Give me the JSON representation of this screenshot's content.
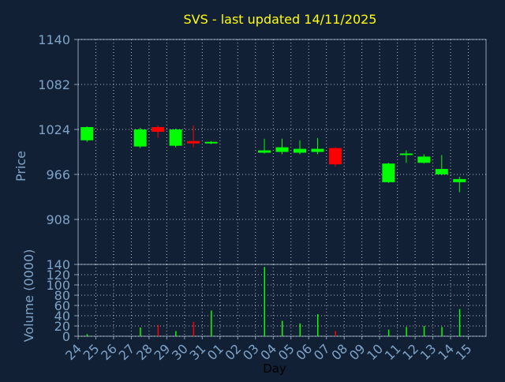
{
  "title": "SVS - last updated 14/11/2025",
  "colors": {
    "background": "#112035",
    "text": "#7fa3c7",
    "title": "#ffff00",
    "grid": "#ffffff",
    "up": "#00ff00",
    "down": "#ff0000"
  },
  "chart_data": [
    {
      "type": "candlestick",
      "ylabel": "Price",
      "ylim": [
        850,
        1140
      ],
      "yticks": [
        908,
        966,
        1024,
        1082,
        1140
      ],
      "grid": true,
      "x_tick_labels": [
        "24",
        "25",
        "26",
        "27",
        "28",
        "29",
        "30",
        "31",
        "01",
        "02",
        "03",
        "04",
        "05",
        "06",
        "07",
        "08",
        "09",
        "10",
        "11",
        "12",
        "13",
        "14",
        "15"
      ],
      "candles": [
        {
          "day": "24",
          "open": 1010,
          "high": 1028,
          "low": 1008,
          "close": 1027
        },
        {
          "day": "27",
          "open": 1002,
          "high": 1026,
          "low": 1000,
          "close": 1024
        },
        {
          "day": "28",
          "open": 1027,
          "high": 1029,
          "low": 1013,
          "close": 1021
        },
        {
          "day": "29",
          "open": 1003,
          "high": 1025,
          "low": 1001,
          "close": 1024
        },
        {
          "day": "30",
          "open": 1009,
          "high": 1029,
          "low": 1001,
          "close": 1006
        },
        {
          "day": "31",
          "open": 1007,
          "high": 1009,
          "low": 1005,
          "close": 1008
        },
        {
          "day": "03",
          "open": 994,
          "high": 1012,
          "low": 993,
          "close": 997
        },
        {
          "day": "04",
          "open": 995,
          "high": 1012,
          "low": 992,
          "close": 1001
        },
        {
          "day": "05",
          "open": 994,
          "high": 1010,
          "low": 992,
          "close": 999
        },
        {
          "day": "06",
          "open": 995,
          "high": 1013,
          "low": 992,
          "close": 999
        },
        {
          "day": "07",
          "open": 1000,
          "high": 1001,
          "low": 976,
          "close": 979
        },
        {
          "day": "10",
          "open": 956,
          "high": 981,
          "low": 955,
          "close": 980
        },
        {
          "day": "11",
          "open": 991,
          "high": 997,
          "low": 981,
          "close": 993
        },
        {
          "day": "12",
          "open": 981,
          "high": 992,
          "low": 980,
          "close": 989
        },
        {
          "day": "13",
          "open": 966,
          "high": 991,
          "low": 965,
          "close": 973
        },
        {
          "day": "14",
          "open": 956,
          "high": 963,
          "low": 943,
          "close": 960
        }
      ]
    },
    {
      "type": "bar",
      "ylabel": "Volume (0000)",
      "xlabel": "Day",
      "ylim": [
        0,
        140
      ],
      "yticks": [
        0,
        20,
        40,
        60,
        80,
        100,
        120,
        140
      ],
      "grid": true,
      "x_tick_labels": [
        "24",
        "25",
        "26",
        "27",
        "28",
        "29",
        "30",
        "31",
        "01",
        "02",
        "03",
        "04",
        "05",
        "06",
        "07",
        "08",
        "09",
        "10",
        "11",
        "12",
        "13",
        "14",
        "15"
      ],
      "bars": [
        {
          "day": "24",
          "value": 4,
          "direction": "up"
        },
        {
          "day": "27",
          "value": 17,
          "direction": "up"
        },
        {
          "day": "28",
          "value": 22,
          "direction": "down"
        },
        {
          "day": "29",
          "value": 10,
          "direction": "up"
        },
        {
          "day": "30",
          "value": 28,
          "direction": "down"
        },
        {
          "day": "31",
          "value": 50,
          "direction": "up"
        },
        {
          "day": "03",
          "value": 135,
          "direction": "up"
        },
        {
          "day": "04",
          "value": 30,
          "direction": "up"
        },
        {
          "day": "05",
          "value": 25,
          "direction": "up"
        },
        {
          "day": "06",
          "value": 43,
          "direction": "up"
        },
        {
          "day": "07",
          "value": 10,
          "direction": "down"
        },
        {
          "day": "10",
          "value": 13,
          "direction": "up"
        },
        {
          "day": "11",
          "value": 18,
          "direction": "up"
        },
        {
          "day": "12",
          "value": 20,
          "direction": "up"
        },
        {
          "day": "13",
          "value": 18,
          "direction": "up"
        },
        {
          "day": "14",
          "value": 53,
          "direction": "up"
        }
      ]
    }
  ]
}
